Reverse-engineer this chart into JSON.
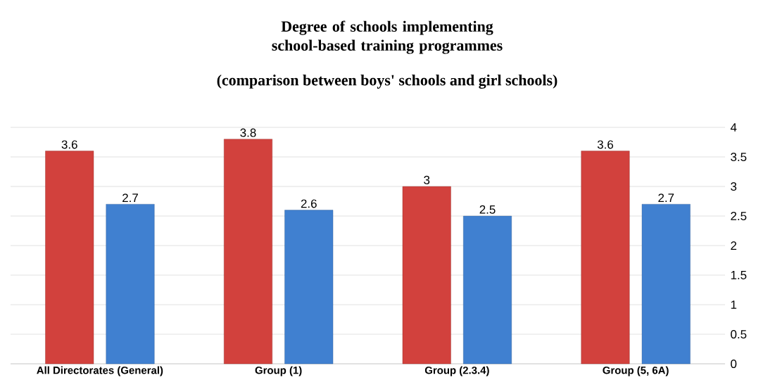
{
  "chart_data": {
    "type": "bar",
    "title": "Degree of schools implementing school-based training programmes",
    "subtitle": "(comparison between boys' schools and girl schools)",
    "categories": [
      "All Directorates (General)",
      "Group (1)",
      "Group (2.3.4)",
      "Group (5, 6A)"
    ],
    "series": [
      {
        "color": "#d2413d",
        "values": [
          3.6,
          3.8,
          3,
          3.6
        ]
      },
      {
        "color": "#4080d0",
        "values": [
          2.7,
          2.6,
          2.5,
          2.7
        ]
      }
    ],
    "ylim": [
      0,
      4
    ],
    "yticks": [
      0,
      0.5,
      1,
      1.5,
      2,
      2.5,
      3,
      3.5,
      4
    ],
    "grid": "y",
    "data_labels": true
  }
}
